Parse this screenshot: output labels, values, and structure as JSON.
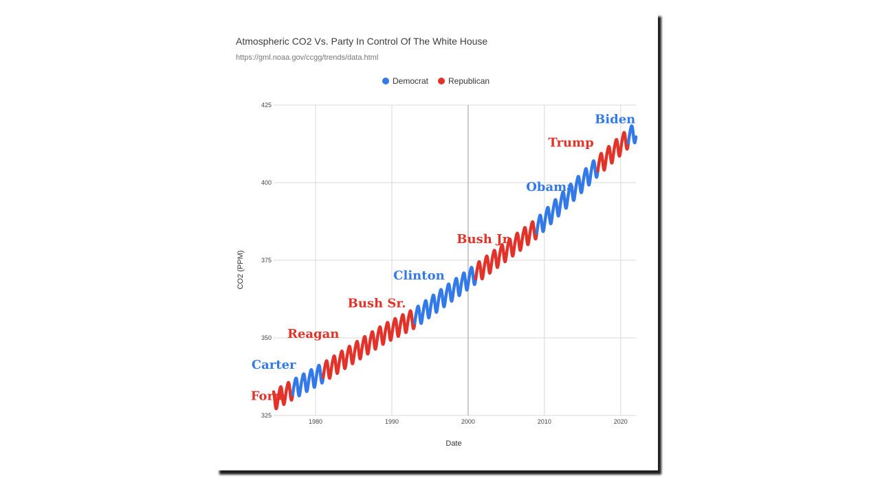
{
  "chart_data": {
    "type": "line",
    "title": "Atmospheric CO2 Vs. Party In Control Of The White House",
    "subtitle": "https://gml.noaa.gov/ccgg/trends/data.html",
    "xlabel": "Date",
    "ylabel": "CO2 (PPM)",
    "xlim": [
      1974.5,
      2022
    ],
    "ylim": [
      325,
      425
    ],
    "x_ticks": [
      1980,
      1990,
      2000,
      2010,
      2020
    ],
    "y_ticks": [
      325,
      350,
      375,
      400,
      425
    ],
    "grid": true,
    "legend_position": "top",
    "colors": {
      "Democrat": "#3479e8",
      "Republican": "#e2332b"
    },
    "series": [
      {
        "name": "Democrat",
        "color": "#3479e8"
      },
      {
        "name": "Republican",
        "color": "#e2332b"
      }
    ],
    "trend": {
      "x": [
        1974.5,
        1977,
        1981,
        1989,
        1993,
        2001,
        2009,
        2017,
        2021,
        2022
      ],
      "y": [
        330,
        333.5,
        339,
        351.5,
        356.5,
        370.8,
        385.5,
        405.5,
        414.5,
        416.5
      ]
    },
    "seasonal_amplitude_ppm": 3,
    "segments": [
      {
        "president": "Ford",
        "party": "Republican",
        "start": 1974.5,
        "end": 1977
      },
      {
        "president": "Carter",
        "party": "Democrat",
        "start": 1977,
        "end": 1981
      },
      {
        "president": "Reagan",
        "party": "Republican",
        "start": 1981,
        "end": 1989
      },
      {
        "president": "Bush Sr.",
        "party": "Republican",
        "start": 1989,
        "end": 1993
      },
      {
        "president": "Clinton",
        "party": "Democrat",
        "start": 1993,
        "end": 2001
      },
      {
        "president": "Bush Jr.",
        "party": "Republican",
        "start": 2001,
        "end": 2009
      },
      {
        "president": "Obama",
        "party": "Democrat",
        "start": 2009,
        "end": 2017
      },
      {
        "president": "Trump",
        "party": "Republican",
        "start": 2017,
        "end": 2021
      },
      {
        "president": "Biden",
        "party": "Democrat",
        "start": 2021,
        "end": 2022
      }
    ],
    "annotations": [
      {
        "text": "Ford",
        "party": "Republican",
        "x": 1971.5,
        "y": 330
      },
      {
        "text": "Carter",
        "party": "Democrat",
        "x": 1971.6,
        "y": 340
      },
      {
        "text": "Reagan",
        "party": "Republican",
        "x": 1976.3,
        "y": 350
      },
      {
        "text": "Bush Sr.",
        "party": "Republican",
        "x": 1984.2,
        "y": 359.8
      },
      {
        "text": "Clinton",
        "party": "Democrat",
        "x": 1990.2,
        "y": 368.8
      },
      {
        "text": "Bush Jr.",
        "party": "Republican",
        "x": 1998.5,
        "y": 380.5
      },
      {
        "text": "Obama",
        "party": "Democrat",
        "x": 2007.6,
        "y": 397.3
      },
      {
        "text": "Trump",
        "party": "Republican",
        "x": 2010.5,
        "y": 411.6
      },
      {
        "text": "Biden",
        "party": "Democrat",
        "x": 2016.6,
        "y": 419.1
      }
    ]
  }
}
